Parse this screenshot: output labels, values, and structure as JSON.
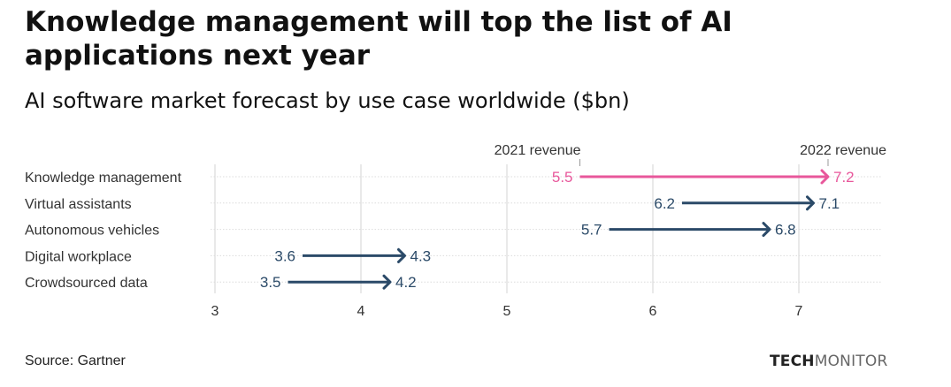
{
  "title": "Knowledge management will top the list of AI applications next year",
  "subtitle": "AI software market forecast by use case worldwide ($bn)",
  "source": "Source: Gartner",
  "logo": {
    "bold": "TECH",
    "light": "MONITOR"
  },
  "colors": {
    "highlight": "#e8579b",
    "default": "#2b4a68"
  },
  "chart_data": {
    "type": "arrow-dumbbell",
    "title": "AI software market forecast by use case worldwide ($bn)",
    "categories": [
      "Knowledge management",
      "Virtual assistants",
      "Autonomous vehicles",
      "Digital workplace",
      "Crowdsourced data"
    ],
    "series": [
      {
        "name": "2021 revenue",
        "values": [
          5.5,
          6.2,
          5.7,
          3.6,
          3.5
        ]
      },
      {
        "name": "2022 revenue",
        "values": [
          7.2,
          7.1,
          6.8,
          4.3,
          4.2
        ]
      }
    ],
    "highlighted": "Knowledge management",
    "xticks": [
      3,
      4,
      5,
      6,
      7
    ],
    "xlim": [
      3,
      7.55
    ],
    "grid": true
  }
}
